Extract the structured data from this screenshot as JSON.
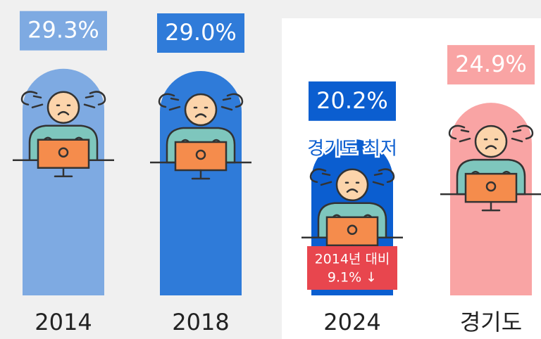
{
  "chart_data": {
    "type": "bar",
    "categories": [
      "2014",
      "2018",
      "2024",
      "경기도"
    ],
    "values": [
      29.3,
      29.0,
      20.2,
      24.9
    ],
    "value_labels": [
      "29.3%",
      "29.0%",
      "20.2%",
      "24.9%"
    ],
    "colors": [
      "#7eaae2",
      "#2f7bd9",
      "#0b5ed0",
      "#f9a4a4"
    ],
    "ylim": [
      0,
      30
    ],
    "annotations": [
      "경기도 최저",
      "2014년 대비",
      "9.1% ↓"
    ]
  }
}
